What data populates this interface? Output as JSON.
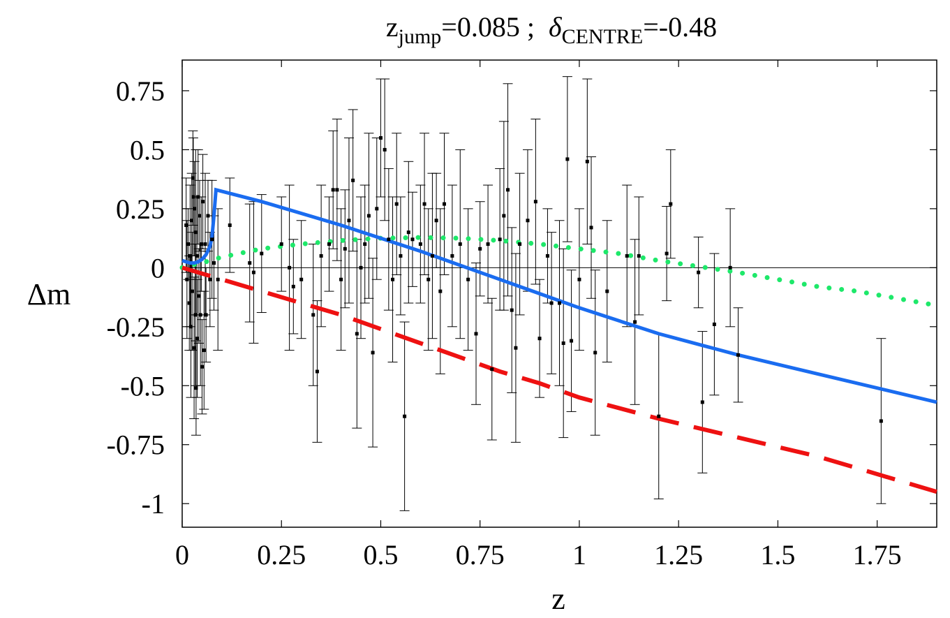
{
  "chart_data": {
    "type": "scatter",
    "title": {
      "z_label": "z",
      "z_sub": "jump",
      "z_value": "=0.085",
      "separator": " ;  ",
      "delta_symbol": "δ",
      "delta_sub": "CENTRE",
      "delta_value": "=-0.48"
    },
    "xlabel": "z",
    "ylabel": "Δm",
    "xlim": [
      0,
      1.9
    ],
    "ylim": [
      -1.1,
      0.88
    ],
    "x_ticks": [
      0,
      0.25,
      0.5,
      0.75,
      1,
      1.25,
      1.5,
      1.75
    ],
    "x_tick_labels": [
      "0",
      "0.25",
      "0.5",
      "0.75",
      "1",
      "1.25",
      "1.5",
      "1.75"
    ],
    "y_ticks": [
      0.75,
      0.5,
      0.25,
      0,
      -0.25,
      -0.5,
      -0.75,
      -1
    ],
    "y_tick_labels": [
      "0.75",
      "0.5",
      "0.25",
      "0",
      "-0.25",
      "-0.5",
      "-0.75",
      "-1"
    ],
    "zero_line": true,
    "colors": {
      "blue": "#1a6cf0",
      "red": "#ee1111",
      "green": "#1ee86a",
      "points": "#000000",
      "axis": "#000000"
    },
    "series": [
      {
        "name": "blue-solid-model",
        "style": "solid",
        "color": "#1a6cf0",
        "points": [
          [
            0,
            0.03
          ],
          [
            0.01,
            0.025
          ],
          [
            0.02,
            0.02
          ],
          [
            0.03,
            0.02
          ],
          [
            0.04,
            0.025
          ],
          [
            0.05,
            0.035
          ],
          [
            0.06,
            0.055
          ],
          [
            0.07,
            0.09
          ],
          [
            0.075,
            0.13
          ],
          [
            0.08,
            0.22
          ],
          [
            0.085,
            0.33
          ],
          [
            0.2,
            0.28
          ],
          [
            0.4,
            0.18
          ],
          [
            0.6,
            0.07
          ],
          [
            0.8,
            -0.05
          ],
          [
            1.0,
            -0.17
          ],
          [
            1.2,
            -0.28
          ],
          [
            1.4,
            -0.37
          ],
          [
            1.6,
            -0.45
          ],
          [
            1.9,
            -0.57
          ]
        ]
      },
      {
        "name": "red-dashed-model",
        "style": "dashed",
        "color": "#ee1111",
        "points": [
          [
            0,
            0.0
          ],
          [
            0.05,
            -0.025
          ],
          [
            0.1,
            -0.05
          ],
          [
            0.2,
            -0.1
          ],
          [
            0.3,
            -0.15
          ],
          [
            0.4,
            -0.2
          ],
          [
            0.5,
            -0.26
          ],
          [
            0.6,
            -0.32
          ],
          [
            0.7,
            -0.38
          ],
          [
            0.8,
            -0.44
          ],
          [
            0.9,
            -0.49
          ],
          [
            1.0,
            -0.55
          ],
          [
            1.2,
            -0.64
          ],
          [
            1.4,
            -0.72
          ],
          [
            1.6,
            -0.8
          ],
          [
            1.9,
            -0.95
          ]
        ]
      },
      {
        "name": "green-dotted-model",
        "style": "dotted",
        "color": "#1ee86a",
        "points": [
          [
            0,
            0.0
          ],
          [
            0.02,
            0.01
          ],
          [
            0.05,
            0.02
          ],
          [
            0.1,
            0.045
          ],
          [
            0.2,
            0.08
          ],
          [
            0.3,
            0.1
          ],
          [
            0.4,
            0.115
          ],
          [
            0.5,
            0.125
          ],
          [
            0.6,
            0.128
          ],
          [
            0.7,
            0.125
          ],
          [
            0.8,
            0.115
          ],
          [
            0.9,
            0.1
          ],
          [
            1.0,
            0.08
          ],
          [
            1.1,
            0.06
          ],
          [
            1.2,
            0.03
          ],
          [
            1.3,
            0.005
          ],
          [
            1.4,
            -0.02
          ],
          [
            1.5,
            -0.05
          ],
          [
            1.6,
            -0.08
          ],
          [
            1.7,
            -0.1
          ],
          [
            1.8,
            -0.13
          ],
          [
            1.9,
            -0.16
          ]
        ]
      }
    ],
    "data_points": [
      {
        "x": 0.01,
        "y": 0.18,
        "err": 0.2
      },
      {
        "x": 0.012,
        "y": -0.05,
        "err": 0.25
      },
      {
        "x": 0.015,
        "y": 0.1,
        "err": 0.15
      },
      {
        "x": 0.018,
        "y": -0.15,
        "err": 0.2
      },
      {
        "x": 0.02,
        "y": 0.05,
        "err": 0.3
      },
      {
        "x": 0.022,
        "y": -0.25,
        "err": 0.3
      },
      {
        "x": 0.024,
        "y": 0.2,
        "err": 0.2
      },
      {
        "x": 0.025,
        "y": -0.1,
        "err": 0.25
      },
      {
        "x": 0.027,
        "y": 0.38,
        "err": 0.2
      },
      {
        "x": 0.028,
        "y": 0.3,
        "err": 0.25
      },
      {
        "x": 0.03,
        "y": -0.34,
        "err": 0.3
      },
      {
        "x": 0.031,
        "y": 0.25,
        "err": 0.2
      },
      {
        "x": 0.033,
        "y": -0.2,
        "err": 0.3
      },
      {
        "x": 0.034,
        "y": 0.15,
        "err": 0.35
      },
      {
        "x": 0.035,
        "y": -0.51,
        "err": 0.2
      },
      {
        "x": 0.037,
        "y": 0.05,
        "err": 0.25
      },
      {
        "x": 0.038,
        "y": -0.3,
        "err": 0.25
      },
      {
        "x": 0.04,
        "y": 0.3,
        "err": 0.2
      },
      {
        "x": 0.042,
        "y": -0.12,
        "err": 0.2
      },
      {
        "x": 0.044,
        "y": 0.22,
        "err": 0.15
      },
      {
        "x": 0.046,
        "y": -0.2,
        "err": 0.3
      },
      {
        "x": 0.048,
        "y": 0.1,
        "err": 0.2
      },
      {
        "x": 0.05,
        "y": -0.42,
        "err": 0.2
      },
      {
        "x": 0.052,
        "y": 0.28,
        "err": 0.2
      },
      {
        "x": 0.055,
        "y": -0.35,
        "err": 0.25
      },
      {
        "x": 0.058,
        "y": 0.1,
        "err": 0.3
      },
      {
        "x": 0.06,
        "y": -0.2,
        "err": 0.2
      },
      {
        "x": 0.065,
        "y": 0.22,
        "err": 0.15
      },
      {
        "x": 0.07,
        "y": -0.05,
        "err": 0.2
      },
      {
        "x": 0.075,
        "y": 0.12,
        "err": 0.25
      },
      {
        "x": 0.08,
        "y": 0.02,
        "err": 0.2
      },
      {
        "x": 0.09,
        "y": -0.05,
        "err": 0.3
      },
      {
        "x": 0.12,
        "y": 0.18,
        "err": 0.2
      },
      {
        "x": 0.17,
        "y": 0.02,
        "err": 0.25
      },
      {
        "x": 0.18,
        "y": -0.02,
        "err": 0.3
      },
      {
        "x": 0.2,
        "y": 0.06,
        "err": 0.25
      },
      {
        "x": 0.25,
        "y": 0.1,
        "err": 0.2
      },
      {
        "x": 0.27,
        "y": 0.0,
        "err": 0.35
      },
      {
        "x": 0.28,
        "y": -0.08,
        "err": 0.2
      },
      {
        "x": 0.3,
        "y": -0.05,
        "err": 0.25
      },
      {
        "x": 0.33,
        "y": -0.2,
        "err": 0.3
      },
      {
        "x": 0.34,
        "y": -0.44,
        "err": 0.3
      },
      {
        "x": 0.35,
        "y": 0.05,
        "err": 0.3
      },
      {
        "x": 0.37,
        "y": 0.1,
        "err": 0.2
      },
      {
        "x": 0.38,
        "y": 0.33,
        "err": 0.25
      },
      {
        "x": 0.39,
        "y": 0.33,
        "err": 0.3
      },
      {
        "x": 0.4,
        "y": -0.05,
        "err": 0.3
      },
      {
        "x": 0.41,
        "y": 0.08,
        "err": 0.25
      },
      {
        "x": 0.42,
        "y": 0.2,
        "err": 0.35
      },
      {
        "x": 0.43,
        "y": 0.37,
        "err": 0.3
      },
      {
        "x": 0.44,
        "y": -0.28,
        "err": 0.4
      },
      {
        "x": 0.45,
        "y": 0.0,
        "err": 0.3
      },
      {
        "x": 0.46,
        "y": 0.1,
        "err": 0.25
      },
      {
        "x": 0.47,
        "y": 0.22,
        "err": 0.35
      },
      {
        "x": 0.48,
        "y": -0.36,
        "err": 0.4
      },
      {
        "x": 0.49,
        "y": 0.25,
        "err": 0.3
      },
      {
        "x": 0.5,
        "y": 0.55,
        "err": 0.25
      },
      {
        "x": 0.51,
        "y": 0.5,
        "err": 0.3
      },
      {
        "x": 0.52,
        "y": 0.12,
        "err": 0.3
      },
      {
        "x": 0.53,
        "y": -0.05,
        "err": 0.35
      },
      {
        "x": 0.54,
        "y": 0.27,
        "err": 0.3
      },
      {
        "x": 0.55,
        "y": 0.05,
        "err": 0.25
      },
      {
        "x": 0.56,
        "y": -0.63,
        "err": 0.4
      },
      {
        "x": 0.57,
        "y": 0.15,
        "err": 0.3
      },
      {
        "x": 0.58,
        "y": 0.12,
        "err": 0.2
      },
      {
        "x": 0.6,
        "y": 0.1,
        "err": 0.25
      },
      {
        "x": 0.61,
        "y": 0.27,
        "err": 0.3
      },
      {
        "x": 0.62,
        "y": -0.05,
        "err": 0.3
      },
      {
        "x": 0.63,
        "y": 0.05,
        "err": 0.35
      },
      {
        "x": 0.64,
        "y": 0.2,
        "err": 0.2
      },
      {
        "x": 0.65,
        "y": -0.1,
        "err": 0.35
      },
      {
        "x": 0.66,
        "y": 0.27,
        "err": 0.3
      },
      {
        "x": 0.68,
        "y": 0.05,
        "err": 0.3
      },
      {
        "x": 0.7,
        "y": 0.1,
        "err": 0.4
      },
      {
        "x": 0.72,
        "y": -0.05,
        "err": 0.3
      },
      {
        "x": 0.74,
        "y": -0.28,
        "err": 0.3
      },
      {
        "x": 0.75,
        "y": 0.08,
        "err": 0.2
      },
      {
        "x": 0.77,
        "y": 0.1,
        "err": 0.25
      },
      {
        "x": 0.78,
        "y": -0.43,
        "err": 0.3
      },
      {
        "x": 0.8,
        "y": 0.12,
        "err": 0.3
      },
      {
        "x": 0.81,
        "y": 0.22,
        "err": 0.4
      },
      {
        "x": 0.82,
        "y": 0.33,
        "err": 0.45
      },
      {
        "x": 0.83,
        "y": -0.18,
        "err": 0.35
      },
      {
        "x": 0.84,
        "y": -0.34,
        "err": 0.4
      },
      {
        "x": 0.85,
        "y": 0.1,
        "err": 0.3
      },
      {
        "x": 0.87,
        "y": 0.2,
        "err": 0.3
      },
      {
        "x": 0.89,
        "y": 0.28,
        "err": 0.35
      },
      {
        "x": 0.9,
        "y": -0.3,
        "err": 0.25
      },
      {
        "x": 0.92,
        "y": 0.05,
        "err": 0.2
      },
      {
        "x": 0.93,
        "y": -0.15,
        "err": 0.3
      },
      {
        "x": 0.95,
        "y": -0.15,
        "err": 0.35
      },
      {
        "x": 0.96,
        "y": -0.32,
        "err": 0.4
      },
      {
        "x": 0.97,
        "y": 0.46,
        "err": 0.35
      },
      {
        "x": 0.98,
        "y": -0.31,
        "err": 0.3
      },
      {
        "x": 1.0,
        "y": -0.05,
        "err": 0.3
      },
      {
        "x": 1.02,
        "y": 0.45,
        "err": 0.35
      },
      {
        "x": 1.03,
        "y": 0.17,
        "err": 0.3
      },
      {
        "x": 1.04,
        "y": -0.36,
        "err": 0.35
      },
      {
        "x": 1.07,
        "y": -0.1,
        "err": 0.3
      },
      {
        "x": 1.12,
        "y": 0.05,
        "err": 0.3
      },
      {
        "x": 1.14,
        "y": -0.23,
        "err": 0.35
      },
      {
        "x": 1.15,
        "y": 0.05,
        "err": 0.25
      },
      {
        "x": 1.2,
        "y": -0.63,
        "err": 0.35
      },
      {
        "x": 1.22,
        "y": 0.06,
        "err": 0.2
      },
      {
        "x": 1.23,
        "y": 0.27,
        "err": 0.23
      },
      {
        "x": 1.3,
        "y": -0.02,
        "err": 0.15
      },
      {
        "x": 1.31,
        "y": -0.57,
        "err": 0.3
      },
      {
        "x": 1.34,
        "y": -0.24,
        "err": 0.3
      },
      {
        "x": 1.38,
        "y": 0.0,
        "err": 0.25
      },
      {
        "x": 1.4,
        "y": -0.37,
        "err": 0.2
      },
      {
        "x": 1.76,
        "y": -0.65,
        "err": 0.35
      }
    ]
  }
}
